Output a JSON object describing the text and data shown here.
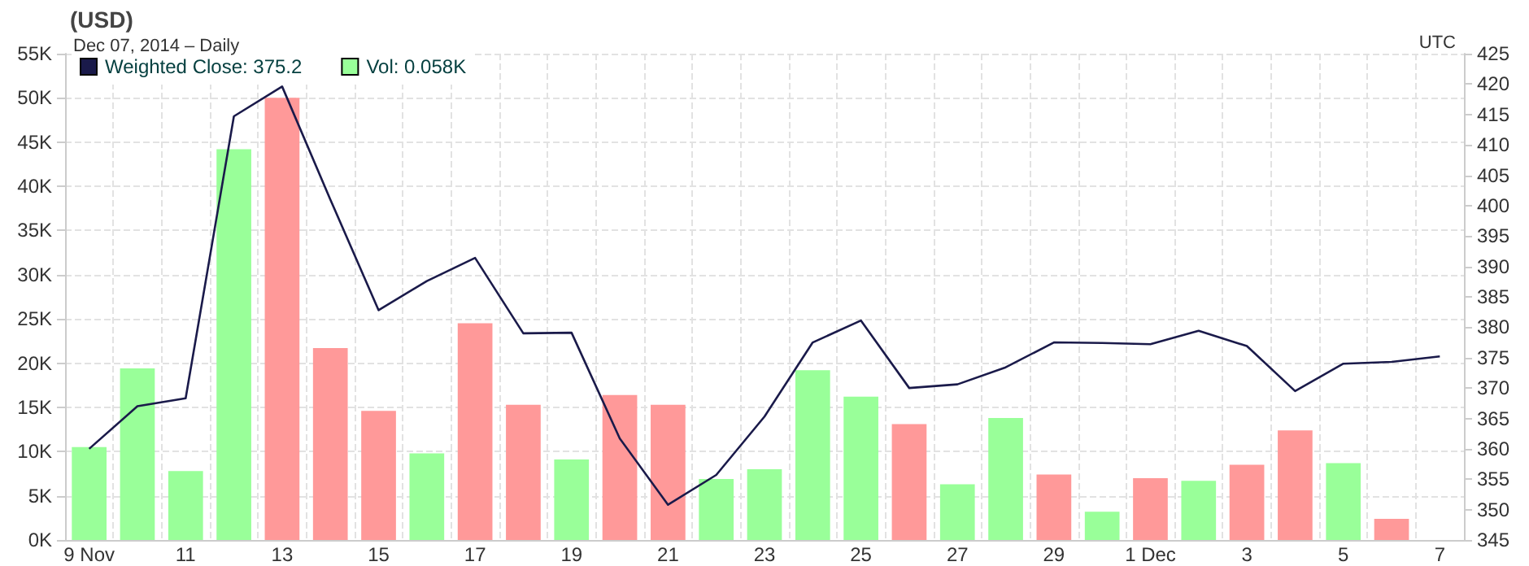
{
  "chart_data": {
    "type": "bar",
    "title": "(USD)",
    "subtitle": "Dec 07, 2014 – Daily",
    "annotations": [
      "UTC"
    ],
    "categories": [
      "9 Nov",
      null,
      "11",
      null,
      "13",
      null,
      "15",
      null,
      "17",
      null,
      "19",
      null,
      "21",
      null,
      "23",
      null,
      "25",
      null,
      "27",
      null,
      "29",
      null,
      "1 Dec",
      null,
      "3",
      null,
      "5",
      null,
      "7"
    ],
    "series": [
      {
        "name": "Vol: 0.058K",
        "color": "#99ff99",
        "colors": [
          "#99ff99",
          "#99ff99",
          "#99ff99",
          "#99ff99",
          "#ff9999",
          "#ff9999",
          "#ff9999",
          "#99ff99",
          "#ff9999",
          "#ff9999",
          "#99ff99",
          "#ff9999",
          "#ff9999",
          "#99ff99",
          "#99ff99",
          "#99ff99",
          "#99ff99",
          "#ff9999",
          "#99ff99",
          "#99ff99",
          "#ff9999",
          "#99ff99",
          "#ff9999",
          "#99ff99",
          "#ff9999",
          "#ff9999",
          "#99ff99",
          "#ff9999",
          "#99ff99"
        ],
        "values": [
          10.5,
          19.4,
          7.8,
          44.2,
          50.0,
          21.7,
          14.6,
          9.8,
          24.5,
          15.3,
          9.1,
          16.4,
          15.3,
          6.9,
          8.0,
          19.2,
          16.2,
          13.1,
          6.3,
          13.8,
          7.4,
          3.2,
          7.0,
          6.7,
          8.5,
          12.4,
          8.7,
          2.4,
          null
        ]
      },
      {
        "name": "Weighted Close: 375.2",
        "type": "line",
        "axis": "y2",
        "color": "#1a1a4a",
        "values": [
          360.0,
          367.0,
          368.3,
          414.7,
          419.6,
          401,
          382.8,
          387.6,
          391.4,
          379.0,
          379.1,
          361.7,
          350.8,
          355.7,
          365.3,
          377.5,
          381.1,
          370.0,
          370.6,
          373.4,
          377.5,
          377.4,
          377.2,
          379.4,
          376.9,
          369.5,
          374.0,
          374.3,
          375.2
        ]
      }
    ],
    "ylim": [
      0,
      55
    ],
    "yticks": [
      {
        "value": 0,
        "label": "0K"
      },
      {
        "value": 5,
        "label": "5K"
      },
      {
        "value": 10,
        "label": "10K"
      },
      {
        "value": 15,
        "label": "15K"
      },
      {
        "value": 20,
        "label": "20K"
      },
      {
        "value": 25,
        "label": "25K"
      },
      {
        "value": 30,
        "label": "30K"
      },
      {
        "value": 35,
        "label": "35K"
      },
      {
        "value": 40,
        "label": "40K"
      },
      {
        "value": 45,
        "label": "45K"
      },
      {
        "value": 50,
        "label": "50K"
      },
      {
        "value": 55,
        "label": "55K"
      }
    ],
    "y2lim": [
      345,
      425
    ],
    "y2ticks": [
      345,
      350,
      355,
      360,
      365,
      370,
      375,
      380,
      385,
      390,
      395,
      400,
      405,
      410,
      415,
      420,
      425
    ],
    "grid": true,
    "legend": "top left",
    "marker": "none",
    "line_style": "solid"
  }
}
